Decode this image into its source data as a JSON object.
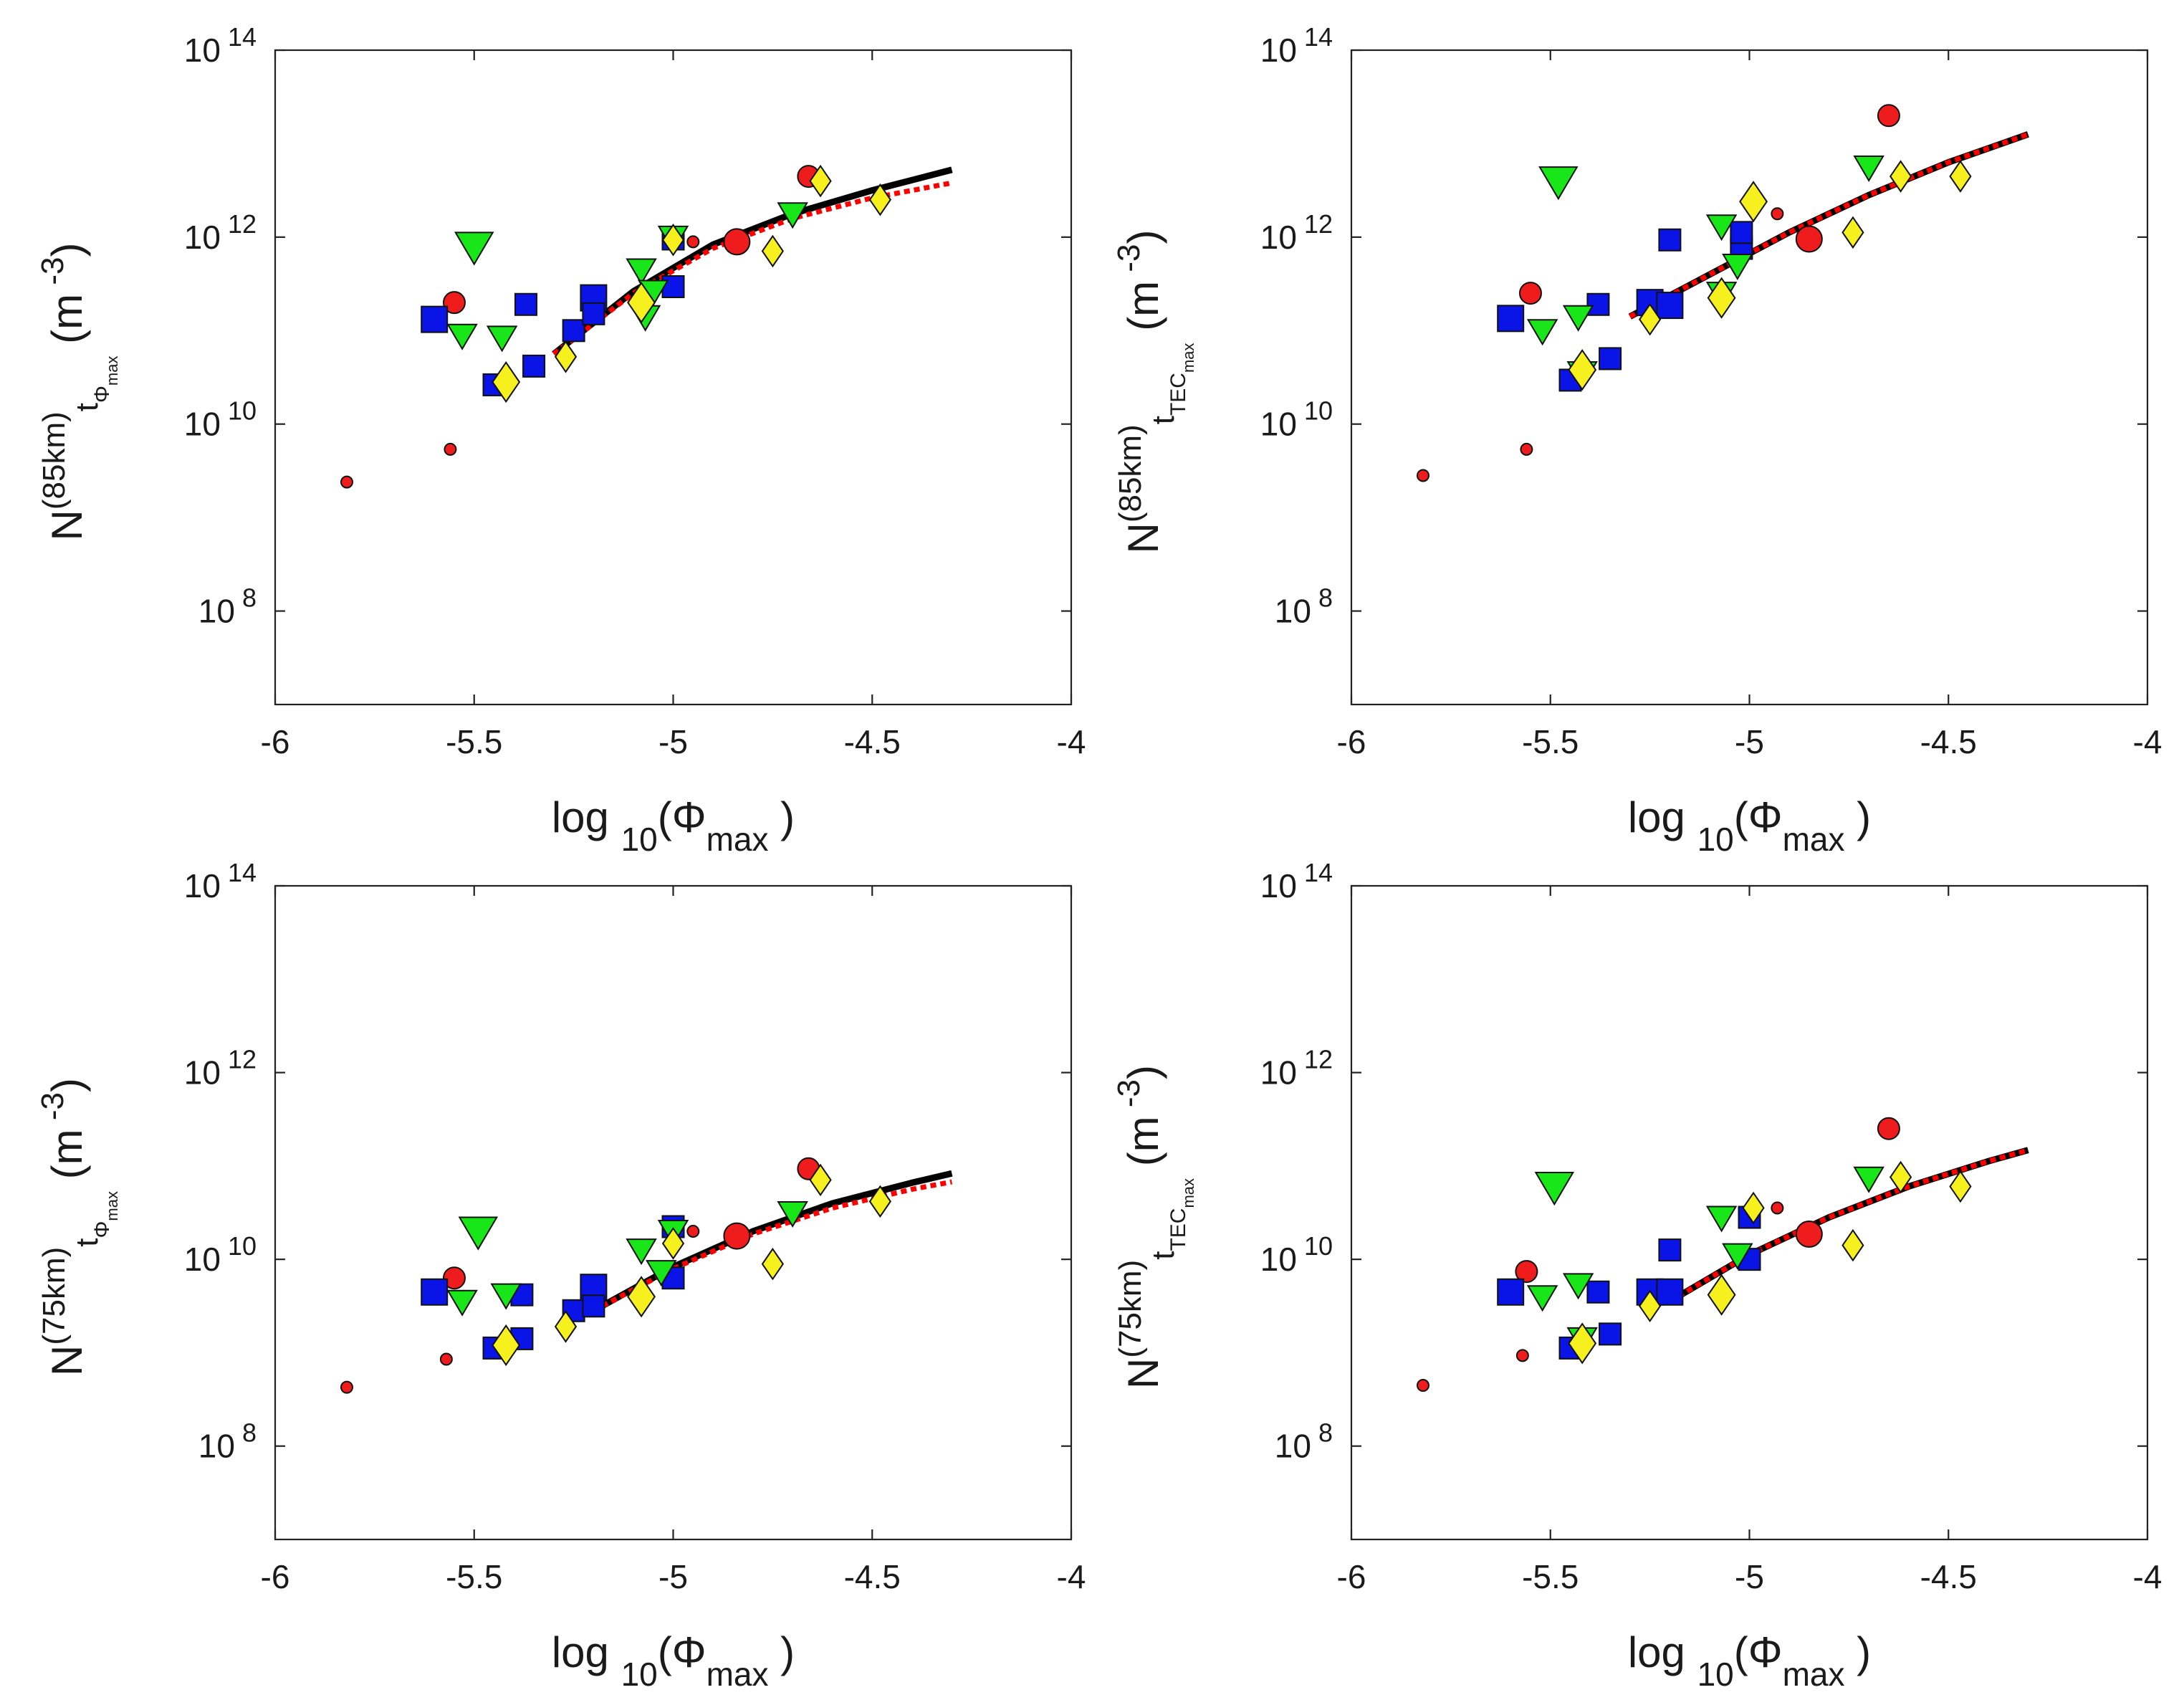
{
  "figure": {
    "rows": 2,
    "cols": 2
  },
  "colors": {
    "red": "#ee1c1c",
    "blue": "#0a14e6",
    "green": "#19e619",
    "yellow": "#f5f01e",
    "fit_solid": "#000000",
    "fit_dotted": "#ff0000"
  },
  "chart_data": [
    {
      "id": "top-left",
      "type": "scatter",
      "xlabel": {
        "main": "log",
        "sub": "10",
        "paren_open": "(",
        "phi": "Φ",
        "phi_sub": "max",
        "paren_close": ")"
      },
      "ylabel": {
        "N": "N",
        "sup": "(85km)",
        "t": "t",
        "sub": "Φ",
        "subsub": "max",
        "unit_open": "(m",
        "unit_exp": "-3",
        "unit_close": ")"
      },
      "xlim": [
        -6,
        -4
      ],
      "ylim_log10": [
        7,
        14
      ],
      "xticks": [
        "-6",
        "-5.5",
        "-5",
        "-4.5",
        "-4"
      ],
      "yticks": [
        {
          "base": "10",
          "exp": "8",
          "v": 8
        },
        {
          "base": "10",
          "exp": "10",
          "v": 10
        },
        {
          "base": "10",
          "exp": "12",
          "v": 12
        },
        {
          "base": "10",
          "exp": "14",
          "v": 14
        }
      ],
      "series": [
        {
          "name": "red-circles",
          "marker": "circle",
          "color": "red",
          "points": [
            [
              -5.82,
              9.38,
              "s"
            ],
            [
              -5.56,
              9.73,
              "s"
            ],
            [
              -5.55,
              11.3,
              "m"
            ],
            [
              -4.66,
              12.65,
              "m"
            ],
            [
              -4.95,
              11.95,
              "s"
            ],
            [
              -4.84,
              11.95,
              "l"
            ]
          ]
        },
        {
          "name": "blue-squares",
          "marker": "square",
          "color": "blue",
          "points": [
            [
              -5.6,
              11.12,
              "l"
            ],
            [
              -5.37,
              11.28,
              "m"
            ],
            [
              -5.45,
              10.42,
              "m"
            ],
            [
              -5.35,
              10.62,
              "m"
            ],
            [
              -5.25,
              11.0,
              "m"
            ],
            [
              -5.2,
              11.35,
              "l"
            ],
            [
              -5.2,
              11.18,
              "m"
            ],
            [
              -5.0,
              11.47,
              "m"
            ],
            [
              -5.0,
              11.98,
              "m"
            ]
          ]
        },
        {
          "name": "green-triangles",
          "marker": "triangle",
          "color": "green",
          "points": [
            [
              -5.5,
              11.9,
              "l"
            ],
            [
              -5.53,
              10.95,
              "m"
            ],
            [
              -5.43,
              10.93,
              "m"
            ],
            [
              -5.08,
              11.65,
              "m"
            ],
            [
              -5.05,
              11.42,
              "m"
            ],
            [
              -5.07,
              11.15,
              "m"
            ],
            [
              -4.7,
              12.25,
              "m"
            ],
            [
              -5.0,
              12.0,
              "m"
            ]
          ]
        },
        {
          "name": "yellow-diamonds",
          "marker": "diamond",
          "color": "yellow",
          "points": [
            [
              -5.42,
              10.45,
              "l"
            ],
            [
              -5.27,
              10.72,
              "m"
            ],
            [
              -5.08,
              11.3,
              "l"
            ],
            [
              -5.0,
              11.97,
              "m"
            ],
            [
              -4.75,
              11.85,
              "m"
            ],
            [
              -4.63,
              12.6,
              "m"
            ],
            [
              -4.48,
              12.4,
              "m"
            ]
          ]
        }
      ],
      "fit_solid": [
        [
          -5.3,
          10.75
        ],
        [
          -5.1,
          11.42
        ],
        [
          -4.9,
          11.92
        ],
        [
          -4.7,
          12.25
        ],
        [
          -4.5,
          12.5
        ],
        [
          -4.3,
          12.72
        ]
      ],
      "fit_dotted": [
        [
          -5.3,
          10.75
        ],
        [
          -5.1,
          11.4
        ],
        [
          -4.9,
          11.88
        ],
        [
          -4.7,
          12.2
        ],
        [
          -4.5,
          12.42
        ],
        [
          -4.3,
          12.58
        ]
      ]
    },
    {
      "id": "top-right",
      "type": "scatter",
      "xlabel": {
        "main": "log",
        "sub": "10",
        "paren_open": "(",
        "phi": "Φ",
        "phi_sub": "max",
        "paren_close": ")"
      },
      "ylabel": {
        "N": "N",
        "sup": "(85km)",
        "t": "t",
        "sub": "TEC",
        "subsub": "max",
        "unit_open": "(m",
        "unit_exp": "-3",
        "unit_close": ")"
      },
      "xlim": [
        -6,
        -4
      ],
      "ylim_log10": [
        7,
        14
      ],
      "xticks": [
        "-6",
        "-5.5",
        "-5",
        "-4.5",
        "-4"
      ],
      "yticks": [
        {
          "base": "10",
          "exp": "8",
          "v": 8
        },
        {
          "base": "10",
          "exp": "10",
          "v": 10
        },
        {
          "base": "10",
          "exp": "12",
          "v": 12
        },
        {
          "base": "10",
          "exp": "14",
          "v": 14
        }
      ],
      "series": [
        {
          "name": "red-circles",
          "marker": "circle",
          "color": "red",
          "points": [
            [
              -5.82,
              9.45,
              "s"
            ],
            [
              -5.56,
              9.73,
              "s"
            ],
            [
              -5.55,
              11.4,
              "m"
            ],
            [
              -4.65,
              13.3,
              "m"
            ],
            [
              -4.93,
              12.25,
              "s"
            ],
            [
              -4.85,
              11.98,
              "l"
            ]
          ]
        },
        {
          "name": "blue-squares",
          "marker": "square",
          "color": "blue",
          "points": [
            [
              -5.6,
              11.13,
              "l"
            ],
            [
              -5.38,
              11.28,
              "m"
            ],
            [
              -5.45,
              10.47,
              "m"
            ],
            [
              -5.35,
              10.7,
              "m"
            ],
            [
              -5.25,
              11.3,
              "l"
            ],
            [
              -5.2,
              11.27,
              "l"
            ],
            [
              -5.2,
              11.97,
              "m"
            ],
            [
              -5.02,
              11.88,
              "m"
            ],
            [
              -5.02,
              12.05,
              "m"
            ]
          ]
        },
        {
          "name": "green-triangles",
          "marker": "triangle",
          "color": "green",
          "points": [
            [
              -5.48,
              12.6,
              "l"
            ],
            [
              -5.52,
              11.0,
              "m"
            ],
            [
              -5.43,
              11.15,
              "m"
            ],
            [
              -5.07,
              12.12,
              "m"
            ],
            [
              -5.03,
              11.7,
              "m"
            ],
            [
              -5.07,
              11.4,
              "m"
            ],
            [
              -4.7,
              12.75,
              "m"
            ],
            [
              -5.42,
              10.55,
              "m"
            ]
          ]
        },
        {
          "name": "yellow-diamonds",
          "marker": "diamond",
          "color": "yellow",
          "points": [
            [
              -5.42,
              10.58,
              "l"
            ],
            [
              -5.25,
              11.12,
              "m"
            ],
            [
              -5.07,
              11.35,
              "l"
            ],
            [
              -4.99,
              12.38,
              "l"
            ],
            [
              -4.74,
              12.05,
              "m"
            ],
            [
              -4.62,
              12.65,
              "m"
            ],
            [
              -4.47,
              12.65,
              "m"
            ]
          ]
        }
      ],
      "fit_solid": [
        [
          -5.3,
          11.15
        ],
        [
          -5.1,
          11.6
        ],
        [
          -4.9,
          12.05
        ],
        [
          -4.7,
          12.45
        ],
        [
          -4.5,
          12.8
        ],
        [
          -4.3,
          13.1
        ]
      ],
      "fit_dotted": [
        [
          -5.3,
          11.15
        ],
        [
          -5.1,
          11.6
        ],
        [
          -4.9,
          12.05
        ],
        [
          -4.7,
          12.45
        ],
        [
          -4.5,
          12.8
        ],
        [
          -4.3,
          13.1
        ]
      ]
    },
    {
      "id": "bottom-left",
      "type": "scatter",
      "xlabel": {
        "main": "log",
        "sub": "10",
        "paren_open": "(",
        "phi": "Φ",
        "phi_sub": "max",
        "paren_close": ")"
      },
      "ylabel": {
        "N": "N",
        "sup": "(75km)",
        "t": "t",
        "sub": "Φ",
        "subsub": "max",
        "unit_open": "(m",
        "unit_exp": "-3",
        "unit_close": ")"
      },
      "xlim": [
        -6,
        -4
      ],
      "ylim_log10": [
        7,
        14
      ],
      "xticks": [
        "-6",
        "-5.5",
        "-5",
        "-4.5",
        "-4"
      ],
      "yticks": [
        {
          "base": "10",
          "exp": "8",
          "v": 8
        },
        {
          "base": "10",
          "exp": "10",
          "v": 10
        },
        {
          "base": "10",
          "exp": "12",
          "v": 12
        },
        {
          "base": "10",
          "exp": "14",
          "v": 14
        }
      ],
      "series": [
        {
          "name": "red-circles",
          "marker": "circle",
          "color": "red",
          "points": [
            [
              -5.82,
              8.63,
              "s"
            ],
            [
              -5.57,
              8.93,
              "s"
            ],
            [
              -5.55,
              9.8,
              "m"
            ],
            [
              -4.66,
              10.97,
              "m"
            ],
            [
              -4.95,
              10.3,
              "s"
            ],
            [
              -4.84,
              10.25,
              "l"
            ]
          ]
        },
        {
          "name": "blue-squares",
          "marker": "square",
          "color": "blue",
          "points": [
            [
              -5.6,
              9.65,
              "l"
            ],
            [
              -5.38,
              9.62,
              "m"
            ],
            [
              -5.45,
              9.05,
              "m"
            ],
            [
              -5.38,
              9.15,
              "m"
            ],
            [
              -5.25,
              9.45,
              "m"
            ],
            [
              -5.2,
              9.7,
              "l"
            ],
            [
              -5.2,
              9.5,
              "m"
            ],
            [
              -5.0,
              9.8,
              "m"
            ],
            [
              -5.0,
              10.35,
              "m"
            ]
          ]
        },
        {
          "name": "green-triangles",
          "marker": "triangle",
          "color": "green",
          "points": [
            [
              -5.49,
              10.3,
              "l"
            ],
            [
              -5.53,
              9.55,
              "m"
            ],
            [
              -5.42,
              9.62,
              "m"
            ],
            [
              -5.08,
              10.1,
              "m"
            ],
            [
              -5.03,
              9.87,
              "m"
            ],
            [
              -4.7,
              10.5,
              "m"
            ],
            [
              -5.0,
              10.3,
              "m"
            ]
          ]
        },
        {
          "name": "yellow-diamonds",
          "marker": "diamond",
          "color": "yellow",
          "points": [
            [
              -5.42,
              9.08,
              "l"
            ],
            [
              -5.27,
              9.28,
              "m"
            ],
            [
              -5.08,
              9.6,
              "l"
            ],
            [
              -5.0,
              10.17,
              "m"
            ],
            [
              -4.75,
              9.95,
              "m"
            ],
            [
              -4.63,
              10.85,
              "m"
            ],
            [
              -4.48,
              10.62,
              "m"
            ]
          ]
        }
      ],
      "fit_solid": [
        [
          -5.2,
          9.45
        ],
        [
          -5.0,
          9.92
        ],
        [
          -4.8,
          10.3
        ],
        [
          -4.6,
          10.6
        ],
        [
          -4.4,
          10.82
        ],
        [
          -4.3,
          10.92
        ]
      ],
      "fit_dotted": [
        [
          -5.2,
          9.45
        ],
        [
          -5.0,
          9.9
        ],
        [
          -4.8,
          10.27
        ],
        [
          -4.6,
          10.55
        ],
        [
          -4.4,
          10.75
        ],
        [
          -4.3,
          10.83
        ]
      ]
    },
    {
      "id": "bottom-right",
      "type": "scatter",
      "xlabel": {
        "main": "log",
        "sub": "10",
        "paren_open": "(",
        "phi": "Φ",
        "phi_sub": "max",
        "paren_close": ")"
      },
      "ylabel": {
        "N": "N",
        "sup": "(75km)",
        "t": "t",
        "sub": "TEC",
        "subsub": "max",
        "unit_open": "(m",
        "unit_exp": "-3",
        "unit_close": ")"
      },
      "xlim": [
        -6,
        -4
      ],
      "ylim_log10": [
        7,
        14
      ],
      "xticks": [
        "-6",
        "-5.5",
        "-5",
        "-4.5",
        "-4"
      ],
      "yticks": [
        {
          "base": "10",
          "exp": "8",
          "v": 8
        },
        {
          "base": "10",
          "exp": "10",
          "v": 10
        },
        {
          "base": "10",
          "exp": "12",
          "v": 12
        },
        {
          "base": "10",
          "exp": "14",
          "v": 14
        }
      ],
      "series": [
        {
          "name": "red-circles",
          "marker": "circle",
          "color": "red",
          "points": [
            [
              -5.82,
              8.65,
              "s"
            ],
            [
              -5.57,
              8.97,
              "s"
            ],
            [
              -5.56,
              9.87,
              "m"
            ],
            [
              -4.65,
              11.4,
              "m"
            ],
            [
              -4.93,
              10.55,
              "s"
            ],
            [
              -4.85,
              10.27,
              "l"
            ]
          ]
        },
        {
          "name": "blue-squares",
          "marker": "square",
          "color": "blue",
          "points": [
            [
              -5.6,
              9.65,
              "l"
            ],
            [
              -5.38,
              9.65,
              "m"
            ],
            [
              -5.45,
              9.05,
              "m"
            ],
            [
              -5.35,
              9.2,
              "m"
            ],
            [
              -5.25,
              9.65,
              "l"
            ],
            [
              -5.2,
              9.65,
              "l"
            ],
            [
              -5.2,
              10.1,
              "m"
            ],
            [
              -5.0,
              10.0,
              "m"
            ],
            [
              -5.0,
              10.45,
              "m"
            ]
          ]
        },
        {
          "name": "green-triangles",
          "marker": "triangle",
          "color": "green",
          "points": [
            [
              -5.49,
              10.78,
              "l"
            ],
            [
              -5.52,
              9.6,
              "m"
            ],
            [
              -5.43,
              9.73,
              "m"
            ],
            [
              -5.07,
              10.45,
              "m"
            ],
            [
              -5.03,
              10.05,
              "m"
            ],
            [
              -4.7,
              10.87,
              "m"
            ],
            [
              -5.42,
              9.15,
              "m"
            ]
          ]
        },
        {
          "name": "yellow-diamonds",
          "marker": "diamond",
          "color": "yellow",
          "points": [
            [
              -5.42,
              9.1,
              "l"
            ],
            [
              -5.25,
              9.5,
              "m"
            ],
            [
              -5.07,
              9.62,
              "l"
            ],
            [
              -4.99,
              10.55,
              "m"
            ],
            [
              -4.74,
              10.15,
              "m"
            ],
            [
              -4.62,
              10.88,
              "m"
            ],
            [
              -4.47,
              10.78,
              "m"
            ]
          ]
        }
      ],
      "fit_solid": [
        [
          -5.2,
          9.55
        ],
        [
          -5.0,
          10.05
        ],
        [
          -4.8,
          10.45
        ],
        [
          -4.6,
          10.78
        ],
        [
          -4.4,
          11.05
        ],
        [
          -4.3,
          11.17
        ]
      ],
      "fit_dotted": [
        [
          -5.2,
          9.55
        ],
        [
          -5.0,
          10.05
        ],
        [
          -4.8,
          10.45
        ],
        [
          -4.6,
          10.78
        ],
        [
          -4.4,
          11.05
        ],
        [
          -4.3,
          11.17
        ]
      ]
    }
  ]
}
